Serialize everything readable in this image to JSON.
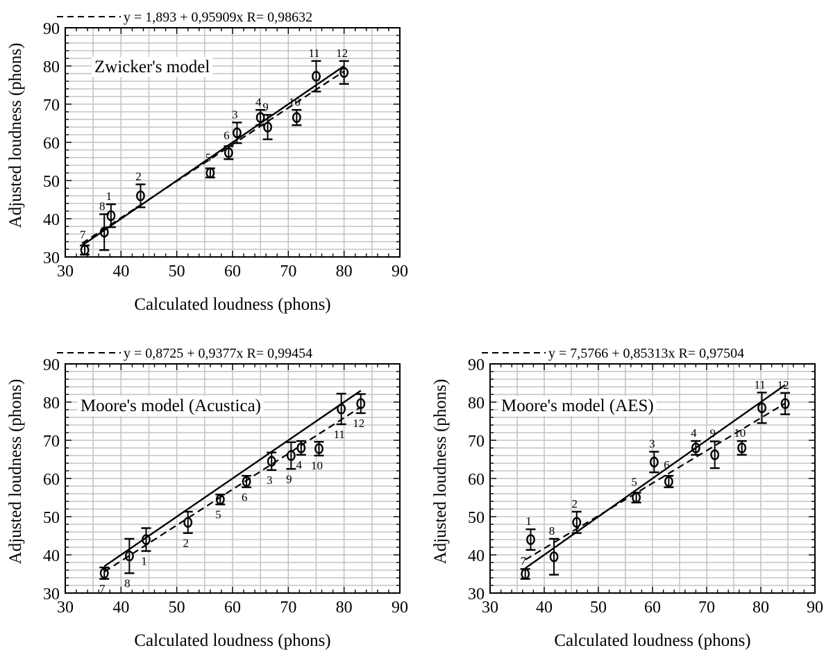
{
  "chart_data": [
    {
      "type": "scatter",
      "title": "Zwicker's model",
      "xlabel": "Calculated loudness (phons)",
      "ylabel": "Adjusted loudness (phons)",
      "xlim": [
        30,
        90
      ],
      "ylim": [
        30,
        90
      ],
      "x_ticks": [
        "30",
        "40",
        "50",
        "60",
        "70",
        "80",
        "90"
      ],
      "y_ticks": [
        "30",
        "40",
        "50",
        "60",
        "70",
        "80",
        "90"
      ],
      "grid": true,
      "fit_equation": "y = 1,893 + 0,95909x R= 0,98632",
      "fit_line": {
        "x": [
          33,
          80
        ],
        "y": [
          33.55,
          78.62
        ]
      },
      "ideal_line": {
        "x": [
          33,
          80
        ],
        "y": [
          33,
          80
        ]
      },
      "points": [
        {
          "label": "1",
          "x": 38.2,
          "y": 40.8,
          "err": 3.0,
          "label_pos": "above"
        },
        {
          "label": "2",
          "x": 43.5,
          "y": 46.0,
          "err": 3.0,
          "label_pos": "above"
        },
        {
          "label": "3",
          "x": 60.8,
          "y": 62.5,
          "err": 2.7,
          "label_pos": "above"
        },
        {
          "label": "4",
          "x": 65.0,
          "y": 66.5,
          "err": 2.0,
          "label_pos": "above"
        },
        {
          "label": "5",
          "x": 56.0,
          "y": 52.0,
          "err": 1.2,
          "label_pos": "above-far"
        },
        {
          "label": "6",
          "x": 59.3,
          "y": 57.3,
          "err": 1.7,
          "label_pos": "above-far"
        },
        {
          "label": "7",
          "x": 33.5,
          "y": 31.8,
          "err": 1.2,
          "label_pos": "above-far"
        },
        {
          "label": "8",
          "x": 37.0,
          "y": 36.5,
          "err": 4.7,
          "label_pos": "above"
        },
        {
          "label": "9",
          "x": 66.3,
          "y": 64.0,
          "err": 3.2,
          "label_pos": "above"
        },
        {
          "label": "10",
          "x": 71.5,
          "y": 66.5,
          "err": 2.0,
          "label_pos": "above"
        },
        {
          "label": "11",
          "x": 75.0,
          "y": 77.3,
          "err": 4.0,
          "label_pos": "above"
        },
        {
          "label": "12",
          "x": 80.0,
          "y": 78.3,
          "err": 3.0,
          "label_pos": "above"
        }
      ]
    },
    {
      "type": "scatter",
      "title": "Moore's model (Acustica)",
      "xlabel": "Calculated loudness (phons)",
      "ylabel": "Adjusted loudness (phons)",
      "xlim": [
        30,
        90
      ],
      "ylim": [
        30,
        90
      ],
      "x_ticks": [
        "30",
        "40",
        "50",
        "60",
        "70",
        "80",
        "90"
      ],
      "y_ticks": [
        "30",
        "40",
        "50",
        "60",
        "70",
        "80",
        "90"
      ],
      "grid": true,
      "fit_equation": "y = 0,8725 + 0,9377x R= 0,99454",
      "fit_line": {
        "x": [
          37,
          83
        ],
        "y": [
          35.57,
          78.7
        ]
      },
      "ideal_line": {
        "x": [
          37,
          83
        ],
        "y": [
          37,
          83
        ]
      },
      "points": [
        {
          "label": "1",
          "x": 44.5,
          "y": 44.0,
          "err": 3.0,
          "label_pos": "below"
        },
        {
          "label": "2",
          "x": 52.0,
          "y": 48.5,
          "err": 2.8,
          "label_pos": "below"
        },
        {
          "label": "3",
          "x": 67.0,
          "y": 64.5,
          "err": 2.3,
          "label_pos": "below"
        },
        {
          "label": "4",
          "x": 72.3,
          "y": 68.0,
          "err": 1.8,
          "label_pos": "below"
        },
        {
          "label": "5",
          "x": 57.8,
          "y": 54.5,
          "err": 1.3,
          "label_pos": "below"
        },
        {
          "label": "6",
          "x": 62.5,
          "y": 59.2,
          "err": 1.5,
          "label_pos": "below"
        },
        {
          "label": "7",
          "x": 37.0,
          "y": 35.2,
          "err": 1.5,
          "label_pos": "below"
        },
        {
          "label": "8",
          "x": 41.5,
          "y": 39.7,
          "err": 4.5,
          "label_pos": "below"
        },
        {
          "label": "9",
          "x": 70.5,
          "y": 66.0,
          "err": 3.5,
          "label_pos": "below"
        },
        {
          "label": "10",
          "x": 75.5,
          "y": 67.8,
          "err": 1.8,
          "label_pos": "below"
        },
        {
          "label": "11",
          "x": 79.5,
          "y": 78.2,
          "err": 4.0,
          "label_pos": "below"
        },
        {
          "label": "12",
          "x": 83.0,
          "y": 79.6,
          "err": 2.5,
          "label_pos": "below"
        }
      ]
    },
    {
      "type": "scatter",
      "title": "Moore's model (AES)",
      "xlabel": "Calculated loudness (phons)",
      "ylabel": "Adjusted loudness (phons)",
      "xlim": [
        30,
        90
      ],
      "ylim": [
        30,
        90
      ],
      "x_ticks": [
        "30",
        "40",
        "50",
        "60",
        "70",
        "80",
        "90"
      ],
      "y_ticks": [
        "30",
        "40",
        "50",
        "60",
        "70",
        "80",
        "90"
      ],
      "grid": true,
      "fit_equation": "y = 7,5766 + 0,85313x R= 0,97504",
      "fit_line": {
        "x": [
          36.5,
          84.5
        ],
        "y": [
          38.72,
          79.67
        ]
      },
      "ideal_line": {
        "x": [
          36.5,
          84.5
        ],
        "y": [
          36.5,
          84.5
        ]
      },
      "points": [
        {
          "label": "1",
          "x": 37.5,
          "y": 44.0,
          "err": 2.7,
          "label_pos": "above"
        },
        {
          "label": "2",
          "x": 46.0,
          "y": 48.5,
          "err": 2.8,
          "label_pos": "above"
        },
        {
          "label": "3",
          "x": 60.3,
          "y": 64.3,
          "err": 2.7,
          "label_pos": "above"
        },
        {
          "label": "4",
          "x": 68.0,
          "y": 68.0,
          "err": 1.8,
          "label_pos": "above"
        },
        {
          "label": "5",
          "x": 57.0,
          "y": 55.0,
          "err": 1.3,
          "label_pos": "above-far"
        },
        {
          "label": "6",
          "x": 63.0,
          "y": 59.2,
          "err": 1.5,
          "label_pos": "above-far"
        },
        {
          "label": "7",
          "x": 36.5,
          "y": 35.0,
          "err": 1.3,
          "label_pos": "above"
        },
        {
          "label": "8",
          "x": 41.8,
          "y": 39.5,
          "err": 4.7,
          "label_pos": "above"
        },
        {
          "label": "9",
          "x": 71.5,
          "y": 66.2,
          "err": 3.5,
          "label_pos": "above"
        },
        {
          "label": "10",
          "x": 76.5,
          "y": 68.0,
          "err": 1.8,
          "label_pos": "above"
        },
        {
          "label": "11",
          "x": 80.2,
          "y": 78.5,
          "err": 4.0,
          "label_pos": "above"
        },
        {
          "label": "12",
          "x": 84.5,
          "y": 79.6,
          "err": 2.8,
          "label_pos": "above"
        }
      ]
    }
  ]
}
